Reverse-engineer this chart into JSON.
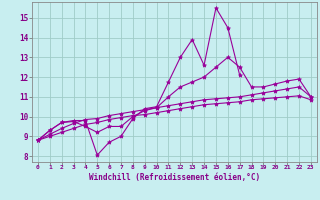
{
  "x": [
    0,
    1,
    2,
    3,
    4,
    5,
    6,
    7,
    8,
    9,
    10,
    11,
    12,
    13,
    14,
    15,
    16,
    17,
    18,
    19,
    20,
    21,
    22,
    23
  ],
  "line1": [
    8.8,
    9.3,
    9.7,
    9.8,
    9.8,
    8.05,
    8.7,
    9.0,
    9.9,
    10.4,
    10.5,
    11.75,
    13.0,
    13.9,
    12.6,
    15.5,
    14.5,
    12.1,
    null,
    null,
    null,
    null,
    null,
    null
  ],
  "line2": [
    8.8,
    9.3,
    9.7,
    9.75,
    9.5,
    9.2,
    9.5,
    9.5,
    10.0,
    10.3,
    10.45,
    11.0,
    11.5,
    11.75,
    12.0,
    12.5,
    13.0,
    12.5,
    11.5,
    11.5,
    11.65,
    11.8,
    11.9,
    11.0
  ],
  "line3": [
    8.8,
    9.1,
    9.4,
    9.65,
    9.85,
    9.9,
    10.05,
    10.15,
    10.25,
    10.35,
    10.45,
    10.55,
    10.65,
    10.75,
    10.85,
    10.9,
    10.95,
    11.0,
    11.1,
    11.2,
    11.3,
    11.4,
    11.5,
    11.0
  ],
  "line4": [
    8.8,
    9.0,
    9.2,
    9.4,
    9.6,
    9.7,
    9.85,
    9.95,
    10.05,
    10.1,
    10.2,
    10.3,
    10.4,
    10.5,
    10.6,
    10.65,
    10.7,
    10.75,
    10.85,
    10.9,
    10.95,
    11.0,
    11.05,
    10.85
  ],
  "line_color": "#990099",
  "background_color": "#c8eef0",
  "grid_color": "#a0ccc8",
  "xlabel": "Windchill (Refroidissement éolien,°C)",
  "xlabel_color": "#880088",
  "tick_color": "#880088",
  "ylim": [
    7.7,
    15.8
  ],
  "xlim": [
    -0.5,
    23.5
  ],
  "yticks": [
    8,
    9,
    10,
    11,
    12,
    13,
    14,
    15
  ],
  "xticks": [
    0,
    1,
    2,
    3,
    4,
    5,
    6,
    7,
    8,
    9,
    10,
    11,
    12,
    13,
    14,
    15,
    16,
    17,
    18,
    19,
    20,
    21,
    22,
    23
  ]
}
